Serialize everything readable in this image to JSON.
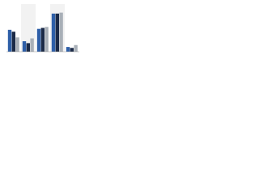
{
  "chart_data": {
    "type": "bar",
    "categories": [
      null,
      null,
      null,
      null,
      null
    ],
    "series": [
      {
        "color": "#2e5fa8",
        "values": [
          46,
          22,
          48,
          80,
          10
        ]
      },
      {
        "color": "#1b2a47",
        "values": [
          42,
          18,
          50,
          80,
          8
        ]
      },
      {
        "color": "#a9b0b8",
        "values": [
          30,
          28,
          52,
          82,
          14
        ]
      }
    ],
    "ylim": [
      0,
      100
    ]
  }
}
